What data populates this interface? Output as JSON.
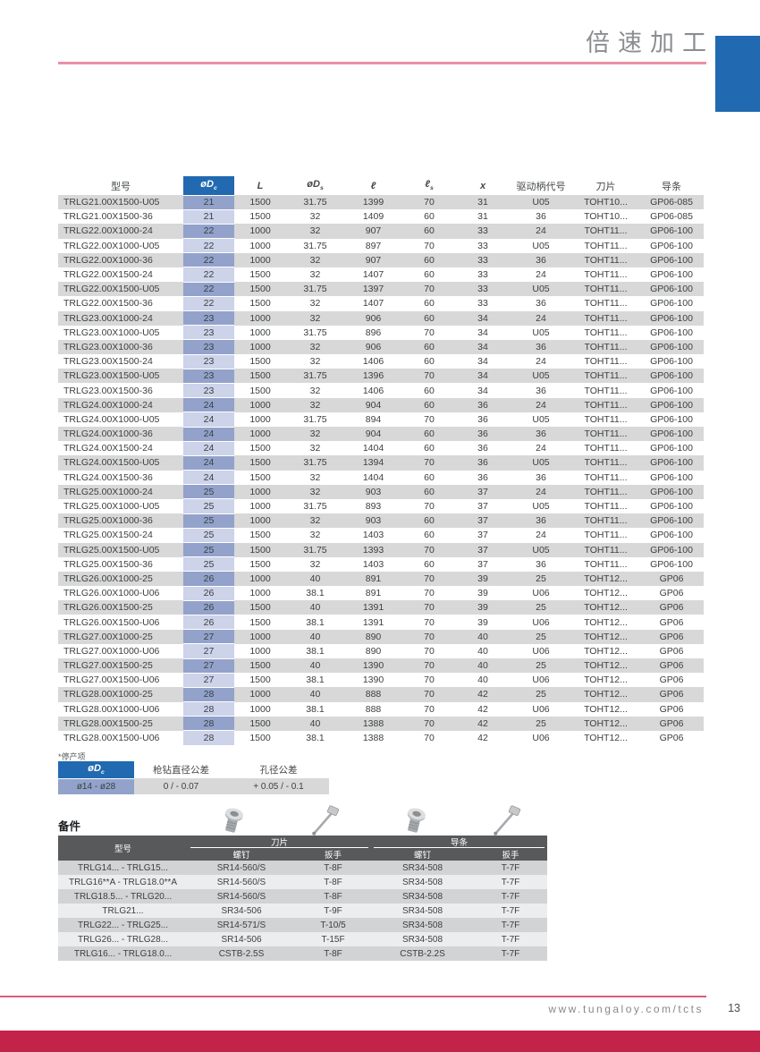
{
  "header": {
    "title": "倍速加工"
  },
  "page": {
    "footnote": "*停产项",
    "footer": {
      "url": "www.tungaloy.com/tcts",
      "page_number": "13"
    }
  },
  "colors": {
    "accent_blue": "#2169B0",
    "pink_rule": "#E992A5",
    "footer_line": "#D95E77",
    "footer_band": "#C32249",
    "dc_cell_dark": "#92A2CB",
    "dc_cell_light": "#CDD3E9",
    "row_stripe": "#D8D8D8",
    "spare_header_bg": "#58595B"
  },
  "icons": {
    "spare_parts": [
      "screw-icon",
      "wrench-icon",
      "screw-icon",
      "wrench-icon"
    ]
  },
  "main_table": {
    "column_keys": [
      "model",
      "dc",
      "L",
      "ds",
      "l",
      "ls",
      "x",
      "drive",
      "insert",
      "pad"
    ],
    "headers": {
      "model": "型号",
      "dc": "øDc",
      "L": "L",
      "ds": "øDs",
      "l": "ℓ",
      "ls": "ℓs",
      "x": "x",
      "drive": "驱动柄代号",
      "insert": "刀片",
      "pad": "导条"
    },
    "rows": [
      [
        "TRLG21.00X1500-U05",
        "21",
        "1500",
        "31.75",
        "1399",
        "70",
        "31",
        "U05",
        "TOHT10...",
        "GP06-085"
      ],
      [
        "TRLG21.00X1500-36",
        "21",
        "1500",
        "32",
        "1409",
        "60",
        "31",
        "36",
        "TOHT10...",
        "GP06-085"
      ],
      [
        "TRLG22.00X1000-24",
        "22",
        "1000",
        "32",
        "907",
        "60",
        "33",
        "24",
        "TOHT11...",
        "GP06-100"
      ],
      [
        "TRLG22.00X1000-U05",
        "22",
        "1000",
        "31.75",
        "897",
        "70",
        "33",
        "U05",
        "TOHT11...",
        "GP06-100"
      ],
      [
        "TRLG22.00X1000-36",
        "22",
        "1000",
        "32",
        "907",
        "60",
        "33",
        "36",
        "TOHT11...",
        "GP06-100"
      ],
      [
        "TRLG22.00X1500-24",
        "22",
        "1500",
        "32",
        "1407",
        "60",
        "33",
        "24",
        "TOHT11...",
        "GP06-100"
      ],
      [
        "TRLG22.00X1500-U05",
        "22",
        "1500",
        "31.75",
        "1397",
        "70",
        "33",
        "U05",
        "TOHT11...",
        "GP06-100"
      ],
      [
        "TRLG22.00X1500-36",
        "22",
        "1500",
        "32",
        "1407",
        "60",
        "33",
        "36",
        "TOHT11...",
        "GP06-100"
      ],
      [
        "TRLG23.00X1000-24",
        "23",
        "1000",
        "32",
        "906",
        "60",
        "34",
        "24",
        "TOHT11...",
        "GP06-100"
      ],
      [
        "TRLG23.00X1000-U05",
        "23",
        "1000",
        "31.75",
        "896",
        "70",
        "34",
        "U05",
        "TOHT11...",
        "GP06-100"
      ],
      [
        "TRLG23.00X1000-36",
        "23",
        "1000",
        "32",
        "906",
        "60",
        "34",
        "36",
        "TOHT11...",
        "GP06-100"
      ],
      [
        "TRLG23.00X1500-24",
        "23",
        "1500",
        "32",
        "1406",
        "60",
        "34",
        "24",
        "TOHT11...",
        "GP06-100"
      ],
      [
        "TRLG23.00X1500-U05",
        "23",
        "1500",
        "31.75",
        "1396",
        "70",
        "34",
        "U05",
        "TOHT11...",
        "GP06-100"
      ],
      [
        "TRLG23.00X1500-36",
        "23",
        "1500",
        "32",
        "1406",
        "60",
        "34",
        "36",
        "TOHT11...",
        "GP06-100"
      ],
      [
        "TRLG24.00X1000-24",
        "24",
        "1000",
        "32",
        "904",
        "60",
        "36",
        "24",
        "TOHT11...",
        "GP06-100"
      ],
      [
        "TRLG24.00X1000-U05",
        "24",
        "1000",
        "31.75",
        "894",
        "70",
        "36",
        "U05",
        "TOHT11...",
        "GP06-100"
      ],
      [
        "TRLG24.00X1000-36",
        "24",
        "1000",
        "32",
        "904",
        "60",
        "36",
        "36",
        "TOHT11...",
        "GP06-100"
      ],
      [
        "TRLG24.00X1500-24",
        "24",
        "1500",
        "32",
        "1404",
        "60",
        "36",
        "24",
        "TOHT11...",
        "GP06-100"
      ],
      [
        "TRLG24.00X1500-U05",
        "24",
        "1500",
        "31.75",
        "1394",
        "70",
        "36",
        "U05",
        "TOHT11...",
        "GP06-100"
      ],
      [
        "TRLG24.00X1500-36",
        "24",
        "1500",
        "32",
        "1404",
        "60",
        "36",
        "36",
        "TOHT11...",
        "GP06-100"
      ],
      [
        "TRLG25.00X1000-24",
        "25",
        "1000",
        "32",
        "903",
        "60",
        "37",
        "24",
        "TOHT11...",
        "GP06-100"
      ],
      [
        "TRLG25.00X1000-U05",
        "25",
        "1000",
        "31.75",
        "893",
        "70",
        "37",
        "U05",
        "TOHT11...",
        "GP06-100"
      ],
      [
        "TRLG25.00X1000-36",
        "25",
        "1000",
        "32",
        "903",
        "60",
        "37",
        "36",
        "TOHT11...",
        "GP06-100"
      ],
      [
        "TRLG25.00X1500-24",
        "25",
        "1500",
        "32",
        "1403",
        "60",
        "37",
        "24",
        "TOHT11...",
        "GP06-100"
      ],
      [
        "TRLG25.00X1500-U05",
        "25",
        "1500",
        "31.75",
        "1393",
        "70",
        "37",
        "U05",
        "TOHT11...",
        "GP06-100"
      ],
      [
        "TRLG25.00X1500-36",
        "25",
        "1500",
        "32",
        "1403",
        "60",
        "37",
        "36",
        "TOHT11...",
        "GP06-100"
      ],
      [
        "TRLG26.00X1000-25",
        "26",
        "1000",
        "40",
        "891",
        "70",
        "39",
        "25",
        "TOHT12...",
        "GP06"
      ],
      [
        "TRLG26.00X1000-U06",
        "26",
        "1000",
        "38.1",
        "891",
        "70",
        "39",
        "U06",
        "TOHT12...",
        "GP06"
      ],
      [
        "TRLG26.00X1500-25",
        "26",
        "1500",
        "40",
        "1391",
        "70",
        "39",
        "25",
        "TOHT12...",
        "GP06"
      ],
      [
        "TRLG26.00X1500-U06",
        "26",
        "1500",
        "38.1",
        "1391",
        "70",
        "39",
        "U06",
        "TOHT12...",
        "GP06"
      ],
      [
        "TRLG27.00X1000-25",
        "27",
        "1000",
        "40",
        "890",
        "70",
        "40",
        "25",
        "TOHT12...",
        "GP06"
      ],
      [
        "TRLG27.00X1000-U06",
        "27",
        "1000",
        "38.1",
        "890",
        "70",
        "40",
        "U06",
        "TOHT12...",
        "GP06"
      ],
      [
        "TRLG27.00X1500-25",
        "27",
        "1500",
        "40",
        "1390",
        "70",
        "40",
        "25",
        "TOHT12...",
        "GP06"
      ],
      [
        "TRLG27.00X1500-U06",
        "27",
        "1500",
        "38.1",
        "1390",
        "70",
        "40",
        "U06",
        "TOHT12...",
        "GP06"
      ],
      [
        "TRLG28.00X1000-25",
        "28",
        "1000",
        "40",
        "888",
        "70",
        "42",
        "25",
        "TOHT12...",
        "GP06"
      ],
      [
        "TRLG28.00X1000-U06",
        "28",
        "1000",
        "38.1",
        "888",
        "70",
        "42",
        "U06",
        "TOHT12...",
        "GP06"
      ],
      [
        "TRLG28.00X1500-25",
        "28",
        "1500",
        "40",
        "1388",
        "70",
        "42",
        "25",
        "TOHT12...",
        "GP06"
      ],
      [
        "TRLG28.00X1500-U06",
        "28",
        "1500",
        "38.1",
        "1388",
        "70",
        "42",
        "U06",
        "TOHT12...",
        "GP06"
      ]
    ]
  },
  "tolerance_table": {
    "headers": [
      "øDc",
      "枪钻直径公差",
      "孔径公差"
    ],
    "rows": [
      [
        "ø14 - ø28",
        "0 / - 0.07",
        "+ 0.05 / - 0.1"
      ]
    ]
  },
  "spare_parts": {
    "label": "备件",
    "header": {
      "model": "型号",
      "insert_group": "刀片",
      "pad_group": "导条",
      "screw": "螺钉",
      "wrench": "扳手"
    },
    "rows": [
      [
        "TRLG14... - TRLG15...",
        "SR14-560/S",
        "T-8F",
        "SR34-508",
        "T-7F"
      ],
      [
        "TRLG16**A - TRLG18.0**A",
        "SR14-560/S",
        "T-8F",
        "SR34-508",
        "T-7F"
      ],
      [
        "TRLG18.5... - TRLG20...",
        "SR14-560/S",
        "T-8F",
        "SR34-508",
        "T-7F"
      ],
      [
        "TRLG21...",
        "SR34-506",
        "T-9F",
        "SR34-508",
        "T-7F"
      ],
      [
        "TRLG22... - TRLG25...",
        "SR14-571/S",
        "T-10/5",
        "SR34-508",
        "T-7F"
      ],
      [
        "TRLG26... - TRLG28...",
        "SR14-506",
        "T-15F",
        "SR34-508",
        "T-7F"
      ],
      [
        "TRLG16... - TRLG18.0...",
        "CSTB-2.5S",
        "T-8F",
        "CSTB-2.2S",
        "T-7F"
      ]
    ]
  }
}
